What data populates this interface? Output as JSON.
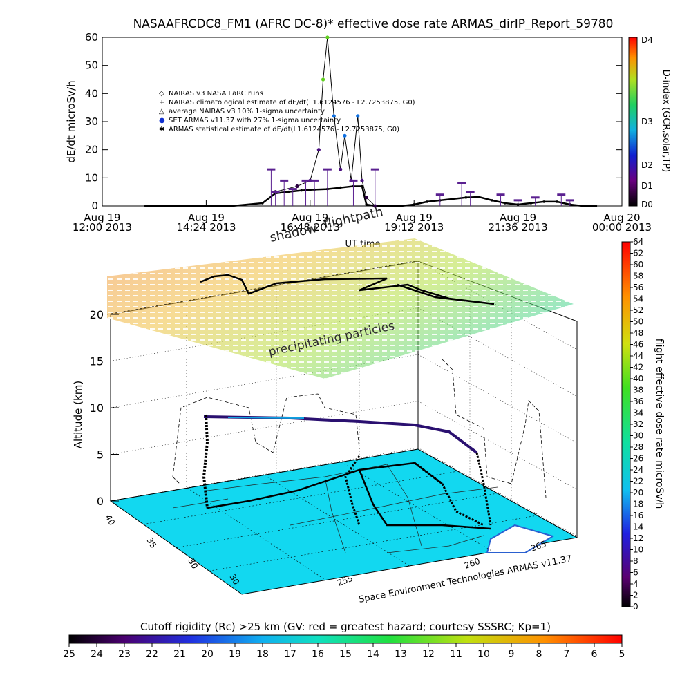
{
  "top_chart": {
    "title": "NASAAFRCDC8_FM1 (AFRC DC-8)* effective dose rate ARMAS_dirIP_Report_59780",
    "ylabel": "dE/dt microSv/h",
    "xlabel": "UT time",
    "legend": [
      {
        "symbol": "◇",
        "text": "NAIRAS v3 NASA LaRC runs"
      },
      {
        "symbol": "+",
        "text": "NAIRAS climatological estimate of dE/dt(L1.6124576 - L2.7253875, G0)"
      },
      {
        "symbol": "△",
        "text": "average NAIRAS v3 10% 1-sigma uncertainty"
      },
      {
        "symbol": "●",
        "text": "SET ARMAS v11.37 with 27% 1-sigma uncertainty"
      },
      {
        "symbol": "✱",
        "text": "ARMAS statistical estimate of dE/dt(L1.6124576 - L2.7253875, G0)"
      }
    ],
    "colorbar_title": "D-index (GCR,solar,TP)",
    "colorbar_ticks": [
      "D4",
      "D3",
      "D2",
      "D1",
      "D0"
    ]
  },
  "bottom_chart": {
    "annot_flightpath": "flightpath",
    "annot_shadow": "shadow",
    "annot_particles": "precipitating particles",
    "zlabel": "Altitude (km)",
    "footer": "Space Environment Technologies ARMAS v11.37",
    "lat_ticks": [
      "40",
      "35",
      "30"
    ],
    "lon_ticks": [
      "255",
      "260",
      "265"
    ],
    "side_colorbar_title": "flight effective dose rate microSv/h",
    "side_colorbar_ticks": [
      "64",
      "62",
      "60",
      "58",
      "56",
      "54",
      "52",
      "50",
      "48",
      "46",
      "44",
      "42",
      "40",
      "38",
      "36",
      "34",
      "32",
      "30",
      "28",
      "26",
      "24",
      "22",
      "20",
      "18",
      "16",
      "14",
      "12",
      "10",
      "8",
      "6",
      "4",
      "2",
      "0"
    ],
    "bottom_colorbar_title": "Cutoff rigidity (Rc) >25 km (GV: red = greatest hazard; courtesy SSSRC; Kp=1)",
    "bottom_colorbar_ticks": [
      "25",
      "24",
      "23",
      "22",
      "21",
      "20",
      "19",
      "18",
      "17",
      "16",
      "15",
      "14",
      "13",
      "12",
      "11",
      "10",
      "9",
      "8",
      "7",
      "6",
      "5"
    ]
  },
  "chart_data": [
    {
      "type": "line",
      "ylim": [
        0,
        60
      ],
      "x_ticks": [
        {
          "l1": "Aug 19",
          "l2": "12:00 2013"
        },
        {
          "l1": "Aug 19",
          "l2": "14:24 2013"
        },
        {
          "l1": "Aug 19",
          "l2": "16:48 2013"
        },
        {
          "l1": "Aug 19",
          "l2": "19:12 2013"
        },
        {
          "l1": "Aug 19",
          "l2": "21:36 2013"
        },
        {
          "l1": "Aug 20",
          "l2": "00:00 2013"
        }
      ],
      "y_ticks": [
        0,
        10,
        20,
        30,
        40,
        50,
        60
      ],
      "series": [
        {
          "x_hours": [
            13.0,
            14.0,
            15.0,
            15.7,
            16.0,
            16.3,
            16.6,
            16.9,
            17.2,
            17.5,
            17.8,
            18.0,
            18.1,
            18.3,
            18.6,
            18.9,
            19.2,
            19.5,
            19.8,
            20.1,
            20.4,
            20.7,
            21.0,
            21.3,
            21.6,
            21.9,
            22.2,
            22.5,
            22.8,
            23.1,
            23.4
          ],
          "values": [
            0,
            0,
            0,
            1,
            4.5,
            5,
            5.5,
            5.8,
            6,
            6.5,
            7,
            7,
            0.5,
            0,
            0,
            0,
            0.5,
            1.5,
            2,
            2.5,
            3,
            3.2,
            2,
            1,
            0.5,
            1,
            1.5,
            1.5,
            0.5,
            0,
            0
          ]
        },
        {
          "x_hours": [
            16.0,
            16.5,
            16.8,
            17.0,
            17.1,
            17.2,
            17.35,
            17.5,
            17.6,
            17.75,
            17.9,
            18.0,
            18.1,
            18.3
          ],
          "values": [
            5,
            7,
            9,
            20,
            45,
            60,
            32,
            13,
            25,
            9,
            32,
            9,
            3,
            0
          ]
        },
        {
          "x_hours": [
            15.9,
            16.0,
            16.2,
            16.4,
            16.7,
            16.9,
            17.2,
            17.8,
            18.3,
            19.8,
            20.3,
            20.5,
            21.2,
            21.6,
            22.0,
            22.6,
            22.8
          ],
          "values": [
            13,
            5,
            9,
            6,
            9,
            9,
            13,
            9,
            13,
            4,
            8,
            5,
            4,
            2,
            3,
            4,
            2
          ]
        }
      ]
    },
    {
      "type": "scatter",
      "zlim": [
        0,
        20
      ],
      "z_ticks": [
        0,
        5,
        10,
        15,
        20
      ],
      "z_unit": "km",
      "lat_range": [
        28,
        42
      ],
      "lon_range": [
        250,
        268
      ],
      "flight_track_altitude_km": [
        0,
        2,
        5,
        8,
        10,
        10,
        10,
        10,
        10,
        9,
        8,
        6,
        4,
        2,
        0
      ],
      "dose_range": [
        0,
        64
      ]
    }
  ]
}
